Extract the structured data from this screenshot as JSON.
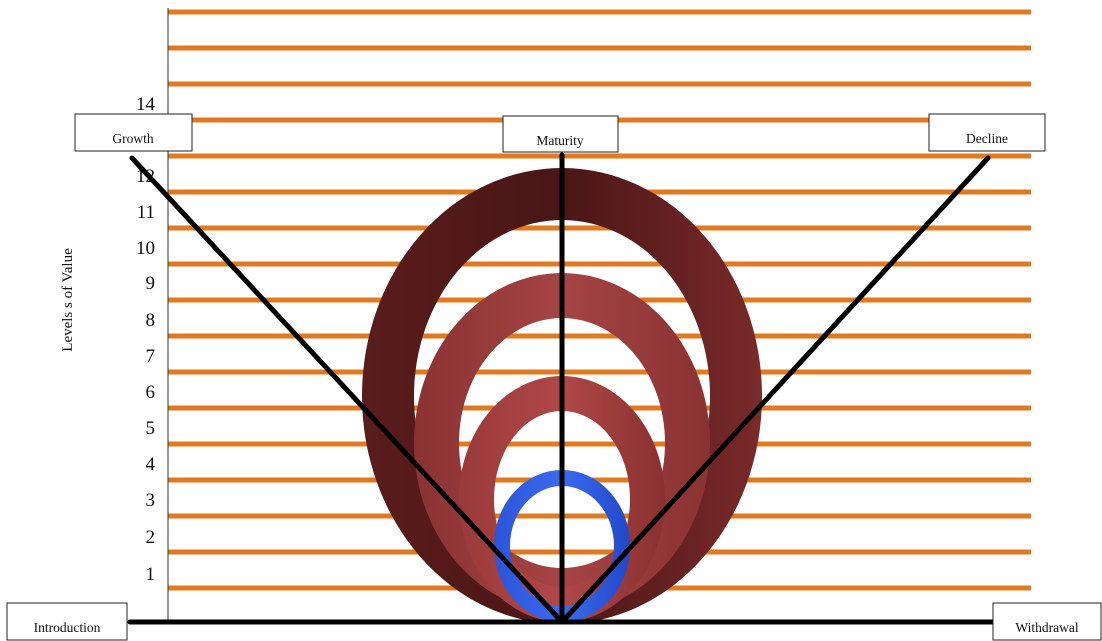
{
  "axis": {
    "title": "Levels s of Value",
    "ticks": [
      "1",
      "2",
      "3",
      "4",
      "5",
      "6",
      "7",
      "8",
      "9",
      "10",
      "11",
      "12",
      "14"
    ]
  },
  "phases": {
    "introduction": "Introduction",
    "growth": "Growth",
    "maturity": "Maturity",
    "decline": "Decline",
    "withdrawal": "Withdrawal"
  },
  "colors": {
    "gridline": "#E07A1F",
    "ring_dark": "#6E2424",
    "ring_mid": "#9C3C3C",
    "ring_light": "#B24A4A",
    "ring_blue": "#2D5BE3",
    "lines": "#000000"
  }
}
